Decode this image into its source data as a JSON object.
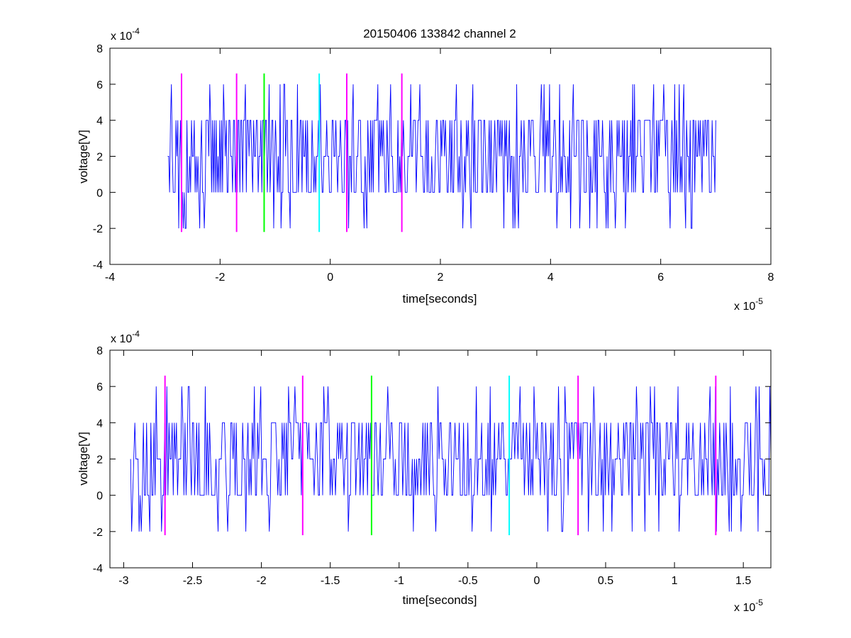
{
  "title": "20150406 133842 channel 2",
  "chart_data": [
    {
      "type": "line",
      "xlabel": "time[seconds]",
      "ylabel": "voltage[V]",
      "x_multiplier_label": "x 10",
      "x_multiplier_exp": "-5",
      "y_multiplier_label": "x 10",
      "y_multiplier_exp": "-4",
      "xlim": [
        -4e-05,
        8e-05
      ],
      "ylim": [
        -0.0004,
        0.0008
      ],
      "xticks": [
        -4e-05,
        -2e-05,
        0,
        2e-05,
        4e-05,
        6e-05,
        8e-05
      ],
      "xtick_labels": [
        "-4",
        "-2",
        "0",
        "2",
        "4",
        "6",
        "8"
      ],
      "yticks": [
        -0.0004,
        -0.0002,
        0,
        0.0002,
        0.0004,
        0.0006,
        0.0008
      ],
      "ytick_labels": [
        "-4",
        "-2",
        "0",
        "2",
        "4",
        "6",
        "8"
      ],
      "series": [
        {
          "color": "#0000ff",
          "x_start": -2.95e-05,
          "x_end": 7e-05,
          "levels": [
            -0.0002,
            0,
            0.0002,
            0.0004,
            0.0006
          ],
          "description_values": "quantized voltage trace alternating mostly between 0, 2e-4 and 4e-4 V with occasional spikes to 6e-4 V and dips to -2e-4 V"
        }
      ],
      "markers": [
        {
          "x": -2.7e-05,
          "color": "#ff00ff",
          "y0": -0.00022,
          "y1": 0.00066
        },
        {
          "x": -1.7e-05,
          "color": "#ff00ff",
          "y0": -0.00022,
          "y1": 0.00066
        },
        {
          "x": -1.2e-05,
          "color": "#00ff00",
          "y0": -0.00022,
          "y1": 0.00066
        },
        {
          "x": -2e-06,
          "color": "#00ffff",
          "y0": -0.00022,
          "y1": 0.00066
        },
        {
          "x": 3e-06,
          "color": "#ff00ff",
          "y0": -0.00022,
          "y1": 0.00066
        },
        {
          "x": 1.3e-05,
          "color": "#ff00ff",
          "y0": -0.00022,
          "y1": 0.00066
        }
      ]
    },
    {
      "type": "line",
      "xlabel": "time[seconds]",
      "ylabel": "voltage[V]",
      "x_multiplier_label": "x 10",
      "x_multiplier_exp": "-5",
      "y_multiplier_label": "x 10",
      "y_multiplier_exp": "-4",
      "xlim": [
        -3.1e-05,
        1.7e-05
      ],
      "ylim": [
        -0.0004,
        0.0008
      ],
      "xticks": [
        -3e-05,
        -2.5e-05,
        -2e-05,
        -1.5e-05,
        -1e-05,
        -5e-06,
        0,
        5e-06,
        1e-05,
        1.5e-05
      ],
      "xtick_labels": [
        "-3",
        "-2.5",
        "-2",
        "-1.5",
        "-1",
        "-0.5",
        "0",
        "0.5",
        "1",
        "1.5"
      ],
      "yticks": [
        -0.0004,
        -0.0002,
        0,
        0.0002,
        0.0004,
        0.0006,
        0.0008
      ],
      "ytick_labels": [
        "-4",
        "-2",
        "0",
        "2",
        "4",
        "6",
        "8"
      ],
      "series": [
        {
          "color": "#0000ff",
          "x_start": -2.95e-05,
          "x_end": 1.7e-05,
          "levels": [
            -0.0002,
            0,
            0.0002,
            0.0004,
            0.0006
          ],
          "description_values": "zoomed view of the same quantized voltage trace"
        }
      ],
      "markers": [
        {
          "x": -2.7e-05,
          "color": "#ff00ff",
          "y0": -0.00022,
          "y1": 0.00066
        },
        {
          "x": -1.7e-05,
          "color": "#ff00ff",
          "y0": -0.00022,
          "y1": 0.00066
        },
        {
          "x": -1.2e-05,
          "color": "#00ff00",
          "y0": -0.00022,
          "y1": 0.00066
        },
        {
          "x": -2e-06,
          "color": "#00ffff",
          "y0": -0.00022,
          "y1": 0.00066
        },
        {
          "x": 3e-06,
          "color": "#ff00ff",
          "y0": -0.00022,
          "y1": 0.00066
        },
        {
          "x": 1.3e-05,
          "color": "#ff00ff",
          "y0": -0.00022,
          "y1": 0.00066
        }
      ]
    }
  ]
}
